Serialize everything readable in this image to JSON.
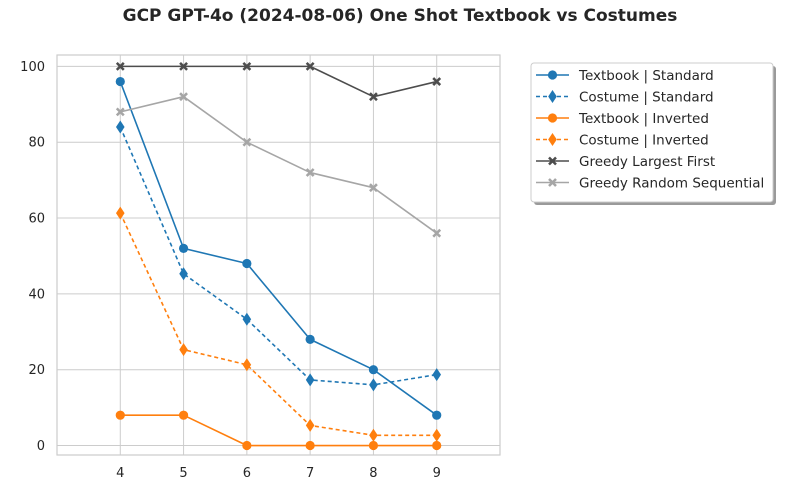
{
  "chart_data": {
    "type": "line",
    "title": "GCP GPT-4o (2024-08-06) One Shot Textbook vs Costumes",
    "xlabel": "",
    "ylabel": "",
    "x": [
      4,
      5,
      6,
      7,
      8,
      9
    ],
    "xlim": [
      3,
      10
    ],
    "ylim": [
      -2.5,
      103
    ],
    "xticks": [
      4,
      5,
      6,
      7,
      8,
      9
    ],
    "yticks": [
      0,
      20,
      40,
      60,
      80,
      100
    ],
    "grid": true,
    "legend_position": "outside upper right",
    "series": [
      {
        "name": "Textbook | Standard",
        "values": [
          96,
          52,
          48,
          28,
          20,
          8
        ],
        "color": "#1f77b4",
        "marker": "circle",
        "dashed": false
      },
      {
        "name": "Costume | Standard",
        "values": [
          84,
          45.3,
          33.3,
          17.3,
          16,
          18.7
        ],
        "color": "#1f77b4",
        "marker": "diamond",
        "dashed": true
      },
      {
        "name": "Textbook | Inverted",
        "values": [
          8,
          8,
          0,
          0,
          0,
          0
        ],
        "color": "#ff7f0e",
        "marker": "circle",
        "dashed": false
      },
      {
        "name": "Costume | Inverted",
        "values": [
          61.3,
          25.3,
          21.3,
          5.3,
          2.7,
          2.7
        ],
        "color": "#ff7f0e",
        "marker": "diamond",
        "dashed": true
      },
      {
        "name": "Greedy Largest First",
        "values": [
          100,
          100,
          100,
          100,
          92,
          96
        ],
        "color": "#4d4d4d",
        "marker": "x",
        "dashed": false
      },
      {
        "name": "Greedy Random Sequential",
        "values": [
          88,
          92,
          80,
          72,
          68,
          56
        ],
        "color": "#a6a6a6",
        "marker": "x",
        "dashed": false
      }
    ]
  }
}
